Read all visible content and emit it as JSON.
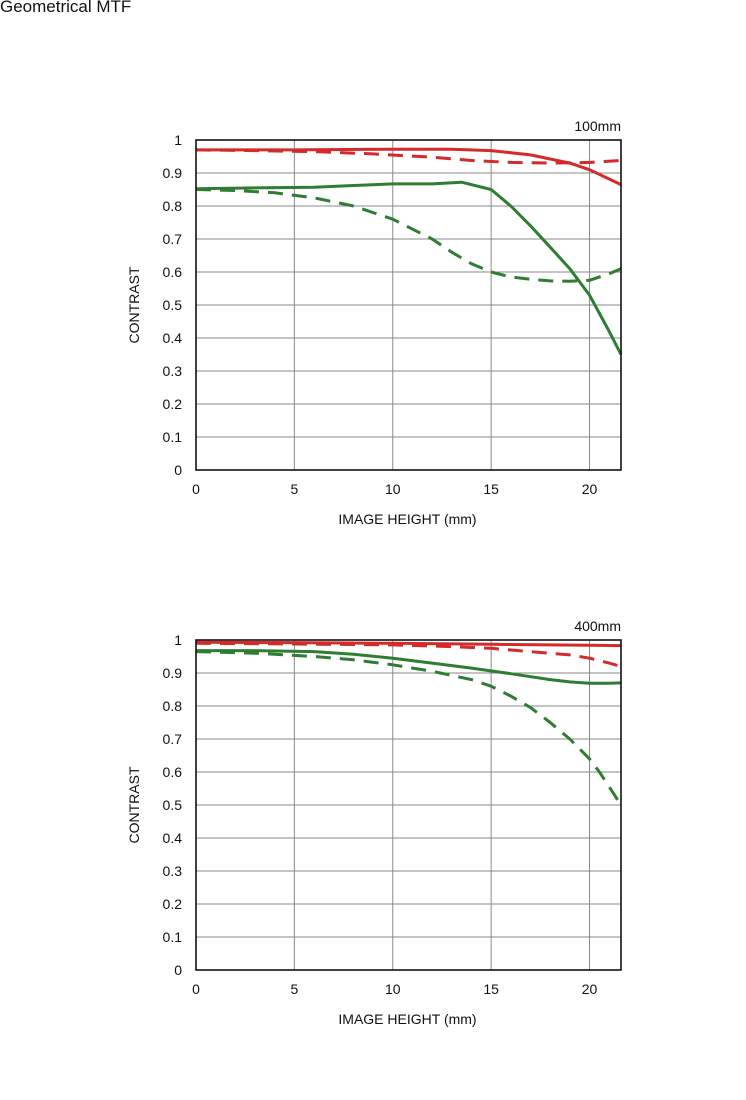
{
  "page_title": "Geometrical MTF",
  "chart_data": [
    {
      "type": "line",
      "focal_label": "100mm",
      "xlabel": "IMAGE HEIGHT (mm)",
      "ylabel": "CONTRAST",
      "xlim": [
        0,
        21.6
      ],
      "ylim": [
        0,
        1
      ],
      "xticks": [
        0,
        5,
        10,
        15,
        20
      ],
      "yticks": [
        0,
        0.1,
        0.2,
        0.3,
        0.4,
        0.5,
        0.6,
        0.7,
        0.8,
        0.9,
        1
      ],
      "ytick_labels": [
        "0",
        "0.1",
        "0.2",
        "0.3",
        "0.4",
        "0.5",
        "0.6",
        "0.7",
        "0.8",
        "0.9",
        "1"
      ],
      "grid": true,
      "series": [
        {
          "color": "#d42a2a",
          "dash": "solid",
          "x": [
            0,
            5,
            10,
            13,
            15,
            17,
            19,
            20,
            21.6
          ],
          "y": [
            0.97,
            0.97,
            0.972,
            0.972,
            0.968,
            0.955,
            0.93,
            0.91,
            0.865
          ]
        },
        {
          "color": "#d42a2a",
          "dash": "dashed",
          "x": [
            0,
            3,
            6,
            9,
            12,
            14,
            16,
            18,
            20,
            21.6
          ],
          "y": [
            0.97,
            0.968,
            0.965,
            0.958,
            0.948,
            0.938,
            0.932,
            0.93,
            0.932,
            0.938
          ]
        },
        {
          "color": "#2e7d32",
          "dash": "solid",
          "x": [
            0,
            3,
            6,
            8,
            10,
            12,
            13.5,
            15,
            16,
            17,
            18,
            19,
            20,
            21,
            21.6
          ],
          "y": [
            0.852,
            0.855,
            0.857,
            0.862,
            0.867,
            0.867,
            0.872,
            0.85,
            0.8,
            0.74,
            0.675,
            0.61,
            0.53,
            0.42,
            0.35
          ]
        },
        {
          "color": "#2e7d32",
          "dash": "dashed",
          "x": [
            0,
            2,
            4,
            6,
            8,
            10,
            12,
            13,
            14,
            15,
            16,
            17,
            18,
            19,
            20,
            21,
            21.6
          ],
          "y": [
            0.85,
            0.847,
            0.84,
            0.825,
            0.8,
            0.76,
            0.7,
            0.66,
            0.625,
            0.6,
            0.585,
            0.578,
            0.573,
            0.572,
            0.575,
            0.595,
            0.61
          ]
        }
      ]
    },
    {
      "type": "line",
      "focal_label": "400mm",
      "xlabel": "IMAGE HEIGHT (mm)",
      "ylabel": "CONTRAST",
      "xlim": [
        0,
        21.6
      ],
      "ylim": [
        0,
        1
      ],
      "xticks": [
        0,
        5,
        10,
        15,
        20
      ],
      "yticks": [
        0,
        0.1,
        0.2,
        0.3,
        0.4,
        0.5,
        0.6,
        0.7,
        0.8,
        0.9,
        1
      ],
      "ytick_labels": [
        "0",
        "0.1",
        "0.2",
        "0.3",
        "0.4",
        "0.5",
        "0.6",
        "0.7",
        "0.8",
        "0.9",
        "1"
      ],
      "grid": true,
      "series": [
        {
          "color": "#d42a2a",
          "dash": "solid",
          "x": [
            0,
            5,
            10,
            15,
            20,
            21.6
          ],
          "y": [
            0.993,
            0.992,
            0.99,
            0.987,
            0.984,
            0.983
          ]
        },
        {
          "color": "#d42a2a",
          "dash": "dashed",
          "x": [
            0,
            5,
            10,
            13,
            15,
            17,
            19,
            20,
            21,
            21.6
          ],
          "y": [
            0.99,
            0.988,
            0.985,
            0.98,
            0.975,
            0.965,
            0.955,
            0.945,
            0.93,
            0.92
          ]
        },
        {
          "color": "#2e7d32",
          "dash": "solid",
          "x": [
            0,
            3,
            6,
            8,
            10,
            12,
            14,
            16,
            18,
            19,
            20,
            21,
            21.6
          ],
          "y": [
            0.968,
            0.968,
            0.965,
            0.957,
            0.945,
            0.93,
            0.915,
            0.898,
            0.88,
            0.873,
            0.869,
            0.869,
            0.87
          ]
        },
        {
          "color": "#2e7d32",
          "dash": "dashed",
          "x": [
            0,
            3,
            6,
            8,
            10,
            12,
            14,
            15,
            16,
            17,
            18,
            19,
            20,
            20.5,
            21,
            21.6
          ],
          "y": [
            0.965,
            0.96,
            0.95,
            0.94,
            0.925,
            0.905,
            0.88,
            0.86,
            0.83,
            0.795,
            0.75,
            0.7,
            0.64,
            0.6,
            0.555,
            0.5
          ]
        }
      ]
    }
  ]
}
